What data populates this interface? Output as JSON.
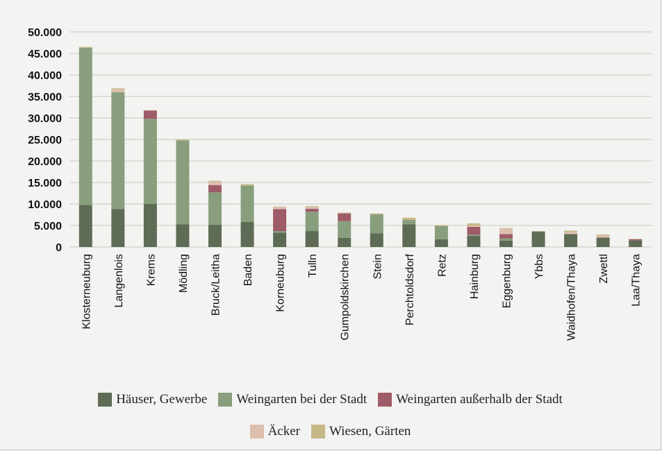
{
  "chart_data": {
    "type": "bar",
    "stacked": true,
    "title": "",
    "xlabel": "",
    "ylabel": "",
    "ylim": [
      0,
      50000
    ],
    "yticks": [
      "0",
      "5.000",
      "10.000",
      "15.000",
      "20.000",
      "25.000",
      "30.000",
      "35.000",
      "40.000",
      "45.000",
      "50.000"
    ],
    "grid": true,
    "legend_position": "bottom",
    "categories": [
      "Klosterneuburg",
      "Langenlois",
      "Krems",
      "Mödling",
      "Bruck/Leitha",
      "Baden",
      "Korneuburg",
      "Tulln",
      "Gumpoldskirchen",
      "Stein",
      "Perchtoldsdorf",
      "Retz",
      "Hainburg",
      "Eggenburg",
      "Ybbs",
      "Waidhofen/Thaya",
      "Zwettl",
      "Laa/Thaya"
    ],
    "series": [
      {
        "name": "Häuser, Gewerbe",
        "color": "#5e6b55",
        "values": [
          9800,
          8800,
          10000,
          5300,
          5200,
          5800,
          3300,
          3700,
          2100,
          3200,
          5300,
          1800,
          2600,
          1500,
          3600,
          3000,
          2200,
          1500
        ]
      },
      {
        "name": "Weingarten bei der Stadt",
        "color": "#889e7d",
        "values": [
          36500,
          27200,
          19800,
          19500,
          7500,
          8500,
          400,
          4500,
          3900,
          4400,
          1000,
          3100,
          300,
          500,
          0,
          0,
          0,
          0
        ]
      },
      {
        "name": "Weingarten außerhalb der Stadt",
        "color": "#9e5b68",
        "values": [
          0,
          0,
          1900,
          0,
          1700,
          0,
          5100,
          700,
          1800,
          0,
          0,
          0,
          1800,
          1000,
          0,
          0,
          0,
          300
        ]
      },
      {
        "name": "Äcker",
        "color": "#ddbfad",
        "values": [
          0,
          700,
          0,
          0,
          800,
          0,
          500,
          400,
          0,
          0,
          0,
          0,
          300,
          1300,
          0,
          500,
          500,
          0
        ]
      },
      {
        "name": "Wiesen, Gärten",
        "color": "#c6b887",
        "values": [
          200,
          200,
          100,
          200,
          200,
          300,
          100,
          200,
          200,
          200,
          500,
          200,
          500,
          100,
          100,
          300,
          200,
          100
        ]
      }
    ]
  }
}
